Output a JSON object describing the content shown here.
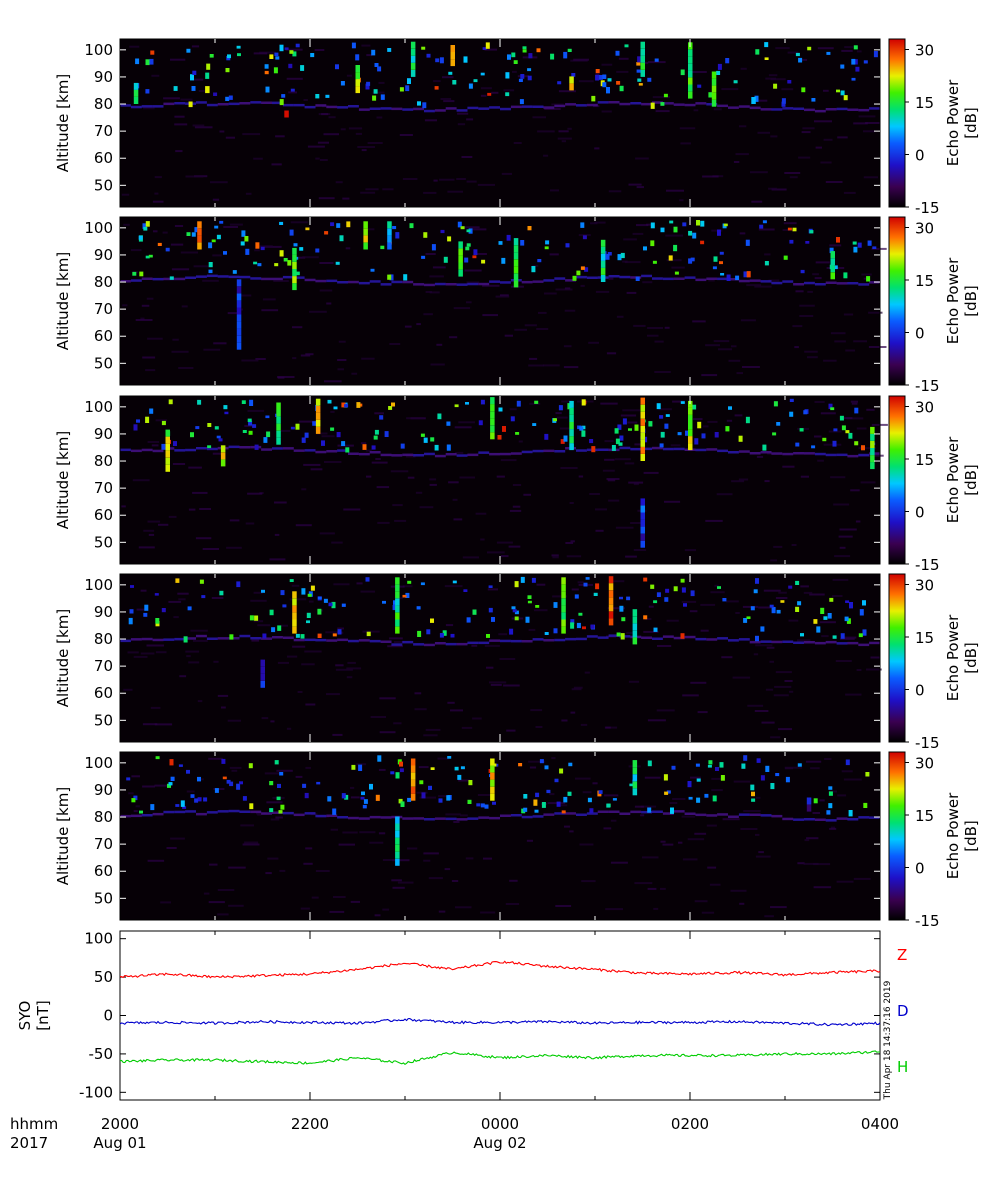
{
  "chart_data": [
    {
      "type": "heatmap",
      "panel": 1,
      "ylabel": "Altitude [km]",
      "yticks": [
        50,
        60,
        70,
        80,
        90,
        100
      ],
      "ylim": [
        42,
        104
      ],
      "xlim": [
        "2017-08-01 20:00",
        "2017-08-02 04:00"
      ],
      "colorbar": {
        "label_line1": "Echo Power",
        "label_line2": "[dB]",
        "ticks": [
          30,
          15,
          0,
          -15
        ],
        "range": [
          -15,
          33
        ]
      },
      "echo_base_altitude_km": 79.5,
      "echoes": [
        {
          "t": "20:10",
          "alt": [
            80,
            86
          ],
          "dB": 12
        },
        {
          "t": "20:55",
          "alt": [
            84,
            86
          ],
          "dB": 20
        },
        {
          "t": "21:45",
          "alt": [
            75,
            76
          ],
          "dB": 33
        },
        {
          "t": "22:30",
          "alt": [
            84,
            92
          ],
          "dB": 18
        },
        {
          "t": "23:05",
          "alt": [
            90,
            101
          ],
          "dB": 10
        },
        {
          "t": "23:30",
          "alt": [
            94,
            101
          ],
          "dB": 22
        },
        {
          "t": "00:45",
          "alt": [
            85,
            88
          ],
          "dB": 20
        },
        {
          "t": "01:30",
          "alt": [
            90,
            101
          ],
          "dB": 14
        },
        {
          "t": "02:00",
          "alt": [
            82,
            101
          ],
          "dB": 15
        },
        {
          "t": "02:15",
          "alt": [
            79,
            90
          ],
          "dB": 14
        },
        {
          "t": "02:40",
          "alt": [
            80,
            82
          ],
          "dB": 8
        }
      ]
    },
    {
      "type": "heatmap",
      "panel": 2,
      "ylabel": "Altitude [km]",
      "yticks": [
        50,
        60,
        70,
        80,
        90,
        100
      ],
      "ylim": [
        42,
        104
      ],
      "xlim": [
        "2017-08-01 20:00",
        "2017-08-02 04:00"
      ],
      "colorbar": {
        "label_line1": "Echo Power",
        "label_line2": "[dB]",
        "ticks": [
          30,
          15,
          0,
          -15
        ],
        "range": [
          -15,
          33
        ]
      },
      "echo_base_altitude_km": 81,
      "echoes": [
        {
          "t": "20:50",
          "alt": [
            92,
            101
          ],
          "dB": 28
        },
        {
          "t": "21:15",
          "alt": [
            55,
            80
          ],
          "dB": -3
        },
        {
          "t": "21:50",
          "alt": [
            77,
            90
          ],
          "dB": 15
        },
        {
          "t": "22:35",
          "alt": [
            92,
            101
          ],
          "dB": 18
        },
        {
          "t": "22:50",
          "alt": [
            92,
            101
          ],
          "dB": 5
        },
        {
          "t": "23:35",
          "alt": [
            82,
            94
          ],
          "dB": 15
        },
        {
          "t": "24:10",
          "alt": [
            78,
            95
          ],
          "dB": 12
        },
        {
          "t": "01:05",
          "alt": [
            80,
            95
          ],
          "dB": 10
        },
        {
          "t": "03:30",
          "alt": [
            81,
            91
          ],
          "dB": 12
        }
      ]
    },
    {
      "type": "heatmap",
      "panel": 3,
      "ylabel": "Altitude [km]",
      "yticks": [
        50,
        60,
        70,
        80,
        90,
        100
      ],
      "ylim": [
        42,
        104
      ],
      "xlim": [
        "2017-08-01 20:00",
        "2017-08-02 04:00"
      ],
      "colorbar": {
        "label_line1": "Echo Power",
        "label_line2": "[dB]",
        "ticks": [
          30,
          15,
          0,
          -15
        ],
        "range": [
          -15,
          33
        ]
      },
      "echo_base_altitude_km": 84,
      "echoes": [
        {
          "t": "20:30",
          "alt": [
            76,
            90
          ],
          "dB": 18
        },
        {
          "t": "21:05",
          "alt": [
            78,
            84
          ],
          "dB": 22
        },
        {
          "t": "21:40",
          "alt": [
            86,
            101
          ],
          "dB": 12
        },
        {
          "t": "22:05",
          "alt": [
            90,
            101
          ],
          "dB": 20
        },
        {
          "t": "23:55",
          "alt": [
            88,
            101
          ],
          "dB": 14
        },
        {
          "t": "00:45",
          "alt": [
            84,
            101
          ],
          "dB": 12
        },
        {
          "t": "01:30",
          "alt": [
            48,
            66
          ],
          "dB": -2
        },
        {
          "t": "01:30",
          "alt": [
            80,
            101
          ],
          "dB": 24
        },
        {
          "t": "02:00",
          "alt": [
            84,
            101
          ],
          "dB": 18
        },
        {
          "t": "03:55",
          "alt": [
            77,
            92
          ],
          "dB": 14
        }
      ]
    },
    {
      "type": "heatmap",
      "panel": 4,
      "ylabel": "Altitude [km]",
      "yticks": [
        50,
        60,
        70,
        80,
        90,
        100
      ],
      "ylim": [
        42,
        104
      ],
      "xlim": [
        "2017-08-01 20:00",
        "2017-08-02 04:00"
      ],
      "colorbar": {
        "label_line1": "Echo Power",
        "label_line2": "[dB]",
        "ticks": [
          30,
          15,
          0,
          -15
        ],
        "range": [
          -15,
          33
        ]
      },
      "echo_base_altitude_km": 80,
      "echoes": [
        {
          "t": "21:30",
          "alt": [
            62,
            72
          ],
          "dB": -5
        },
        {
          "t": "21:50",
          "alt": [
            82,
            95
          ],
          "dB": 22
        },
        {
          "t": "22:55",
          "alt": [
            82,
            101
          ],
          "dB": 12
        },
        {
          "t": "00:40",
          "alt": [
            82,
            101
          ],
          "dB": 16
        },
        {
          "t": "01:10",
          "alt": [
            85,
            101
          ],
          "dB": 28
        },
        {
          "t": "01:25",
          "alt": [
            78,
            90
          ],
          "dB": 10
        }
      ]
    },
    {
      "type": "heatmap",
      "panel": 5,
      "ylabel": "Altitude [km]",
      "yticks": [
        50,
        60,
        70,
        80,
        90,
        100
      ],
      "ylim": [
        42,
        104
      ],
      "xlim": [
        "2017-08-01 20:00",
        "2017-08-02 04:00"
      ],
      "colorbar": {
        "label_line1": "Echo Power",
        "label_line2": "[dB]",
        "ticks": [
          30,
          15,
          0,
          -15
        ],
        "range": [
          -15,
          33
        ]
      },
      "echo_base_altitude_km": 81,
      "echoes": [
        {
          "t": "22:55",
          "alt": [
            62,
            80
          ],
          "dB": 8
        },
        {
          "t": "23:05",
          "alt": [
            86,
            101
          ],
          "dB": 26
        },
        {
          "t": "23:55",
          "alt": [
            86,
            101
          ],
          "dB": 22
        },
        {
          "t": "01:25",
          "alt": [
            88,
            99
          ],
          "dB": 10
        },
        {
          "t": "03:15",
          "alt": [
            82,
            86
          ],
          "dB": -5
        }
      ]
    },
    {
      "type": "line",
      "panel": 6,
      "ylabel_line1": "SYO",
      "ylabel_line2": "[nT]",
      "yticks": [
        100,
        50,
        0,
        -50,
        -100
      ],
      "ylim": [
        -110,
        110
      ],
      "xlim": [
        "2017-08-01 20:00",
        "2017-08-02 04:00"
      ],
      "series": [
        {
          "name": "Z",
          "color": "#ff0000",
          "x": [
            "20:00",
            "20:30",
            "21:00",
            "21:30",
            "22:00",
            "22:30",
            "23:00",
            "23:30",
            "00:00",
            "00:30",
            "01:00",
            "01:30",
            "02:00",
            "02:30",
            "03:00",
            "03:30",
            "04:00"
          ],
          "y": [
            50,
            54,
            50,
            52,
            54,
            60,
            68,
            60,
            70,
            64,
            60,
            55,
            54,
            56,
            53,
            56,
            58
          ]
        },
        {
          "name": "D",
          "color": "#0000cc",
          "x": [
            "20:00",
            "20:30",
            "21:00",
            "21:30",
            "22:00",
            "22:30",
            "23:00",
            "23:30",
            "00:00",
            "00:30",
            "01:00",
            "01:30",
            "02:00",
            "02:30",
            "03:00",
            "03:30",
            "04:00"
          ],
          "y": [
            -10,
            -9,
            -10,
            -8,
            -9,
            -10,
            -5,
            -9,
            -9,
            -8,
            -10,
            -9,
            -9,
            -8,
            -10,
            -12,
            -10
          ]
        },
        {
          "name": "H",
          "color": "#00cc00",
          "x": [
            "20:00",
            "20:30",
            "21:00",
            "21:30",
            "22:00",
            "22:30",
            "23:00",
            "23:30",
            "00:00",
            "00:30",
            "01:00",
            "01:30",
            "02:00",
            "02:30",
            "03:00",
            "03:30",
            "04:00"
          ],
          "y": [
            -60,
            -58,
            -58,
            -60,
            -62,
            -55,
            -62,
            -48,
            -55,
            -52,
            -55,
            -52,
            -52,
            -52,
            -50,
            -50,
            -47
          ]
        }
      ]
    }
  ],
  "xaxis": {
    "row1_label": "hhmm",
    "row2_label": "2017",
    "tick_labels": [
      "2000",
      "2200",
      "0000",
      "0200",
      "0400"
    ],
    "date_labels": [
      "Aug 01",
      "Aug 02"
    ]
  },
  "timestamp": "Thu Apr 18 14:37:16 2019"
}
